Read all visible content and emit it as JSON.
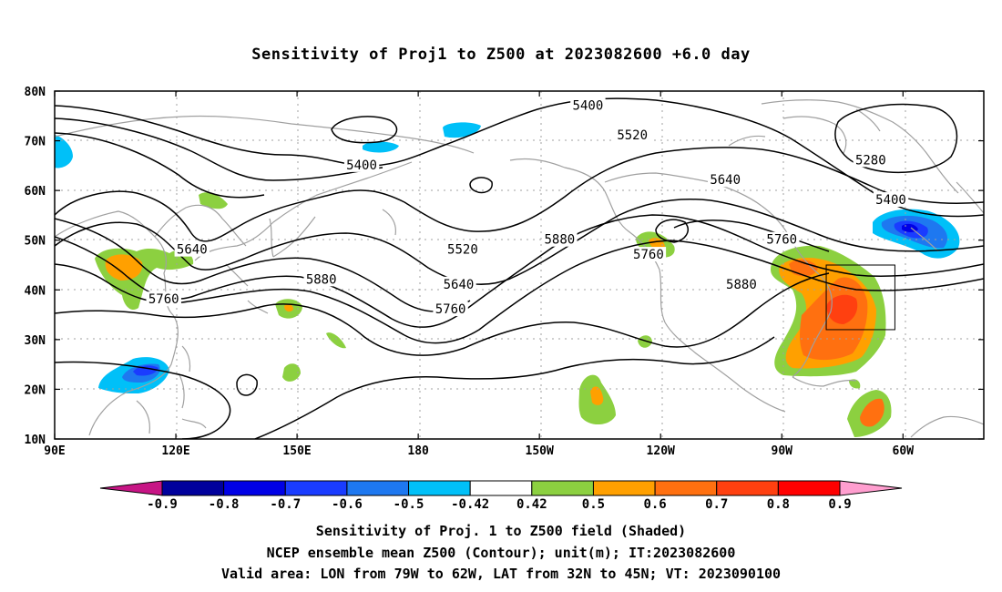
{
  "title": "Sensitivity of Proj1 to Z500 at 2023082600 +6.0 day",
  "map": {
    "lat_labels": [
      "80N",
      "70N",
      "60N",
      "50N",
      "40N",
      "30N",
      "20N",
      "10N"
    ],
    "lon_labels": [
      "90E",
      "120E",
      "150E",
      "180",
      "150W",
      "120W",
      "90W",
      "60W"
    ],
    "contour_labels": [
      {
        "text": "5400",
        "lon": 166,
        "lat": 65
      },
      {
        "text": "5400",
        "lon": -138,
        "lat": 77
      },
      {
        "text": "5520",
        "lon": -127,
        "lat": 71
      },
      {
        "text": "5640",
        "lon": -104,
        "lat": 62
      },
      {
        "text": "5280",
        "lon": -68,
        "lat": 66
      },
      {
        "text": "5400",
        "lon": -63,
        "lat": 58
      },
      {
        "text": "5640",
        "lon": 124,
        "lat": 48
      },
      {
        "text": "5760",
        "lon": 117,
        "lat": 38
      },
      {
        "text": "5880",
        "lon": 156,
        "lat": 42
      },
      {
        "text": "5520",
        "lon": -169,
        "lat": 48
      },
      {
        "text": "5880",
        "lon": -145,
        "lat": 50
      },
      {
        "text": "5640",
        "lon": -170,
        "lat": 41
      },
      {
        "text": "5760",
        "lon": -172,
        "lat": 36
      },
      {
        "text": "5760",
        "lon": -123,
        "lat": 47
      },
      {
        "text": "5760",
        "lon": -90,
        "lat": 50
      },
      {
        "text": "5880",
        "lon": -100,
        "lat": 41
      }
    ],
    "valid_box": {
      "lon_w": -79,
      "lon_e": -62,
      "lat_s": 32,
      "lat_n": 45
    }
  },
  "colorbar": {
    "tick_labels": [
      "-0.9",
      "-0.8",
      "-0.7",
      "-0.6",
      "-0.5",
      "-0.42",
      "0.42",
      "0.5",
      "0.6",
      "0.7",
      "0.8",
      "0.9"
    ],
    "colors": {
      "under": "#c71585",
      "bins": [
        "#00009c",
        "#0000e6",
        "#1a3cff",
        "#1e78f0",
        "#00c0f8",
        "#ffffff",
        "#8cd040",
        "#ffa000",
        "#ff7010",
        "#ff4010",
        "#ff0000"
      ],
      "over": "#ff9ecf"
    }
  },
  "captions": [
    "Sensitivity of Proj. 1 to Z500 field (Shaded)",
    "NCEP ensemble mean Z500 (Contour); unit(m); IT:2023082600",
    "Valid area: LON from 79W to 62W, LAT from 32N to 45N; VT: 2023090100"
  ]
}
